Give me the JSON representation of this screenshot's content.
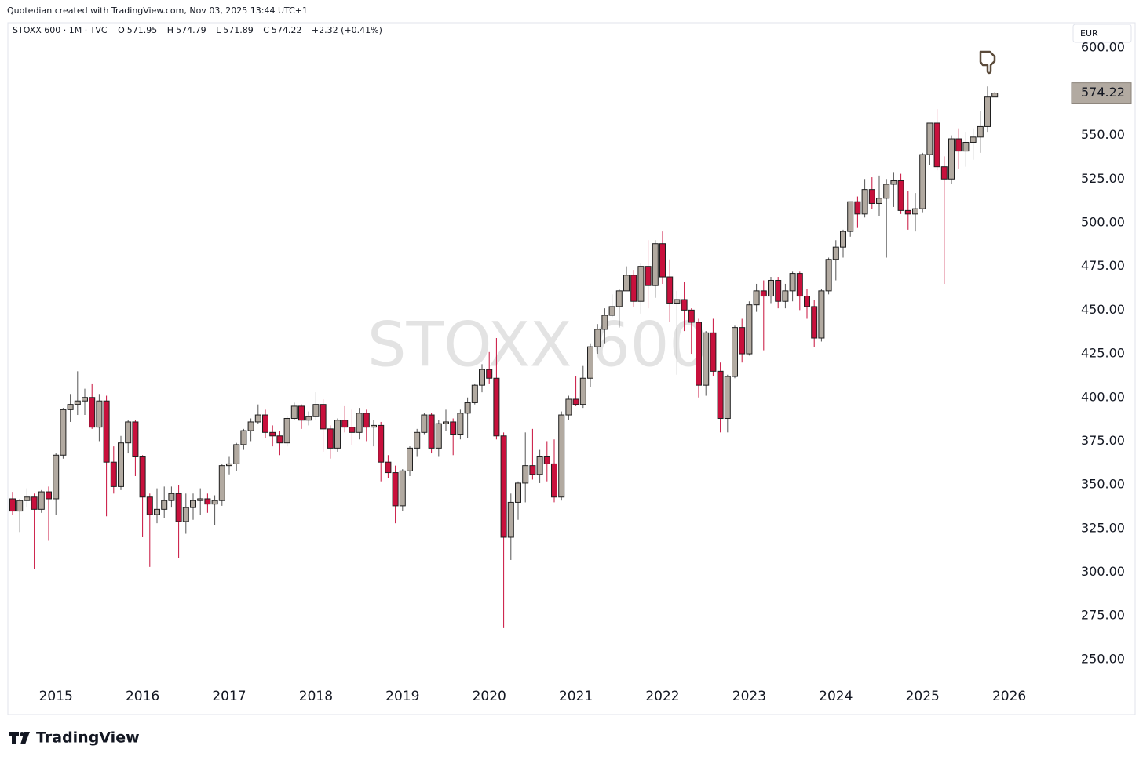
{
  "header": {
    "credit": "Quotedian created with TradingView.com, Nov 03, 2025 13:44 UTC+1"
  },
  "footer": {
    "brand": "TradingView"
  },
  "chart_data": {
    "type": "candlestick",
    "symbol": "STOXX 600 · 1M · TVC",
    "watermark": "STOXX 600",
    "currency": "EUR",
    "legend_labels": [
      "O",
      "H",
      "L",
      "C"
    ],
    "change": "+2.32 (+0.41%)",
    "up_color": "#b2aaa1",
    "down_color": "#c8103c",
    "ylim": [
      219,
      614
    ],
    "yticks": [
      {
        "value": 250,
        "label": "250.00"
      },
      {
        "value": 275,
        "label": "275.00"
      },
      {
        "value": 300,
        "label": "300.00"
      },
      {
        "value": 325,
        "label": "325.00"
      },
      {
        "value": 350,
        "label": "350.00"
      },
      {
        "value": 375,
        "label": "375.00"
      },
      {
        "value": 400,
        "label": "400.00"
      },
      {
        "value": 425,
        "label": "425.00"
      },
      {
        "value": 450,
        "label": "450.00"
      },
      {
        "value": 475,
        "label": "475.00"
      },
      {
        "value": 500,
        "label": "500.00"
      },
      {
        "value": 525,
        "label": "525.00"
      },
      {
        "value": 550,
        "label": "550.00"
      },
      {
        "value": 575,
        "label": "575.00"
      },
      {
        "value": 600,
        "label": "600.00"
      }
    ],
    "xticks": [
      "2015",
      "2016",
      "2017",
      "2018",
      "2019",
      "2020",
      "2021",
      "2022",
      "2023",
      "2024",
      "2025",
      "2026"
    ],
    "ohlc": [
      [
        342,
        346,
        333,
        335
      ],
      [
        335,
        342,
        323,
        341
      ],
      [
        341,
        348,
        337,
        343
      ],
      [
        343,
        345,
        302,
        336
      ],
      [
        336,
        347,
        334,
        346
      ],
      [
        346,
        349,
        318,
        342
      ],
      [
        342,
        368,
        333,
        367
      ],
      [
        367,
        394,
        365,
        393
      ],
      [
        393,
        402,
        386,
        396
      ],
      [
        396,
        415,
        390,
        398
      ],
      [
        398,
        405,
        390,
        400
      ],
      [
        400,
        408,
        382,
        383
      ],
      [
        383,
        402,
        375,
        398
      ],
      [
        398,
        401,
        332,
        363
      ],
      [
        363,
        372,
        345,
        349
      ],
      [
        349,
        378,
        347,
        374
      ],
      [
        374,
        387,
        368,
        386
      ],
      [
        386,
        387,
        355,
        366
      ],
      [
        366,
        367,
        320,
        343
      ],
      [
        343,
        345,
        303,
        333
      ],
      [
        333,
        348,
        328,
        336
      ],
      [
        336,
        349,
        331,
        341
      ],
      [
        341,
        349,
        337,
        345
      ],
      [
        345,
        350,
        308,
        329
      ],
      [
        329,
        345,
        322,
        337
      ],
      [
        337,
        345,
        330,
        341
      ],
      [
        341,
        348,
        333,
        342
      ],
      [
        342,
        345,
        334,
        339
      ],
      [
        339,
        344,
        327,
        341
      ],
      [
        341,
        362,
        338,
        361
      ],
      [
        361,
        366,
        356,
        362
      ],
      [
        362,
        374,
        358,
        373
      ],
      [
        373,
        382,
        370,
        381
      ],
      [
        381,
        388,
        375,
        386
      ],
      [
        386,
        396,
        385,
        390
      ],
      [
        390,
        393,
        377,
        380
      ],
      [
        380,
        384,
        372,
        378
      ],
      [
        378,
        381,
        367,
        374
      ],
      [
        374,
        389,
        372,
        388
      ],
      [
        388,
        397,
        387,
        395
      ],
      [
        395,
        396,
        382,
        387
      ],
      [
        387,
        392,
        384,
        389
      ],
      [
        389,
        403,
        387,
        396
      ],
      [
        396,
        399,
        369,
        382
      ],
      [
        382,
        384,
        365,
        371
      ],
      [
        371,
        388,
        369,
        387
      ],
      [
        387,
        395,
        380,
        383
      ],
      [
        383,
        393,
        373,
        380
      ],
      [
        380,
        394,
        376,
        391
      ],
      [
        391,
        393,
        375,
        383
      ],
      [
        383,
        387,
        372,
        384
      ],
      [
        384,
        386,
        352,
        363
      ],
      [
        363,
        367,
        354,
        357
      ],
      [
        357,
        361,
        328,
        338
      ],
      [
        338,
        359,
        335,
        358
      ],
      [
        358,
        372,
        355,
        371
      ],
      [
        371,
        382,
        366,
        380
      ],
      [
        380,
        391,
        379,
        390
      ],
      [
        390,
        391,
        368,
        371
      ],
      [
        371,
        387,
        366,
        385
      ],
      [
        385,
        393,
        381,
        386
      ],
      [
        386,
        388,
        367,
        379
      ],
      [
        379,
        393,
        376,
        391
      ],
      [
        391,
        400,
        377,
        397
      ],
      [
        397,
        408,
        396,
        407
      ],
      [
        407,
        419,
        403,
        416
      ],
      [
        416,
        426,
        408,
        411
      ],
      [
        411,
        434,
        376,
        378
      ],
      [
        378,
        380,
        268,
        320
      ],
      [
        320,
        345,
        307,
        340
      ],
      [
        340,
        352,
        330,
        351
      ],
      [
        351,
        380,
        340,
        361
      ],
      [
        361,
        382,
        353,
        356
      ],
      [
        356,
        370,
        351,
        366
      ],
      [
        366,
        375,
        352,
        362
      ],
      [
        362,
        376,
        340,
        343
      ],
      [
        343,
        392,
        341,
        390
      ],
      [
        390,
        401,
        387,
        399
      ],
      [
        399,
        412,
        395,
        396
      ],
      [
        396,
        418,
        394,
        411
      ],
      [
        411,
        431,
        406,
        429
      ],
      [
        429,
        442,
        425,
        439
      ],
      [
        439,
        451,
        431,
        447
      ],
      [
        447,
        459,
        446,
        452
      ],
      [
        452,
        462,
        440,
        461
      ],
      [
        461,
        475,
        461,
        470
      ],
      [
        470,
        473,
        452,
        455
      ],
      [
        455,
        477,
        448,
        475
      ],
      [
        475,
        490,
        451,
        464
      ],
      [
        464,
        490,
        457,
        488
      ],
      [
        488,
        495,
        465,
        469
      ],
      [
        469,
        479,
        443,
        454
      ],
      [
        454,
        461,
        413,
        456
      ],
      [
        456,
        466,
        438,
        450
      ],
      [
        450,
        451,
        425,
        443
      ],
      [
        443,
        445,
        400,
        407
      ],
      [
        407,
        438,
        401,
        437
      ],
      [
        437,
        445,
        412,
        415
      ],
      [
        415,
        420,
        380,
        388
      ],
      [
        388,
        413,
        380,
        412
      ],
      [
        412,
        441,
        411,
        440
      ],
      [
        440,
        445,
        420,
        425
      ],
      [
        425,
        455,
        424,
        453
      ],
      [
        453,
        465,
        449,
        461
      ],
      [
        461,
        467,
        427,
        458
      ],
      [
        458,
        469,
        454,
        467
      ],
      [
        467,
        469,
        451,
        455
      ],
      [
        455,
        465,
        451,
        461
      ],
      [
        461,
        472,
        455,
        471
      ],
      [
        471,
        472,
        450,
        458
      ],
      [
        458,
        462,
        445,
        452
      ],
      [
        452,
        456,
        429,
        434
      ],
      [
        434,
        462,
        432,
        461
      ],
      [
        461,
        480,
        459,
        479
      ],
      [
        479,
        490,
        467,
        486
      ],
      [
        486,
        496,
        480,
        495
      ],
      [
        495,
        512,
        492,
        512
      ],
      [
        512,
        515,
        497,
        505
      ],
      [
        505,
        525,
        503,
        519
      ],
      [
        519,
        526,
        508,
        511
      ],
      [
        511,
        527,
        504,
        514
      ],
      [
        514,
        525,
        480,
        522
      ],
      [
        522,
        529,
        509,
        524
      ],
      [
        524,
        528,
        505,
        507
      ],
      [
        507,
        518,
        496,
        505
      ],
      [
        505,
        517,
        495,
        508
      ],
      [
        508,
        540,
        506,
        539
      ],
      [
        539,
        557,
        533,
        557
      ],
      [
        557,
        565,
        530,
        532
      ],
      [
        532,
        538,
        465,
        525
      ],
      [
        525,
        550,
        522,
        548
      ],
      [
        548,
        554,
        531,
        541
      ],
      [
        541,
        552,
        532,
        546
      ],
      [
        546,
        554,
        536,
        549
      ],
      [
        549,
        564,
        540,
        555
      ],
      [
        555,
        578,
        552,
        571.95
      ],
      [
        571.95,
        574.79,
        571.89,
        574.22
      ]
    ]
  }
}
